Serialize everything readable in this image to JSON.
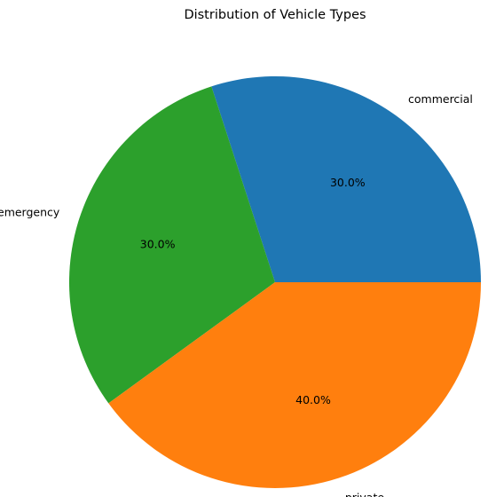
{
  "chart_data": {
    "type": "pie",
    "title": "Distribution of Vehicle Types",
    "categories": [
      "commercial",
      "emergency",
      "private"
    ],
    "values": [
      30,
      30,
      40
    ],
    "percent_labels": [
      "30.0%",
      "30.0%",
      "40.0%"
    ],
    "colors": [
      "#1f77b4",
      "#2ca02c",
      "#ff7f0e"
    ],
    "start_angle_deg": 0,
    "direction": "counterclockwise"
  }
}
